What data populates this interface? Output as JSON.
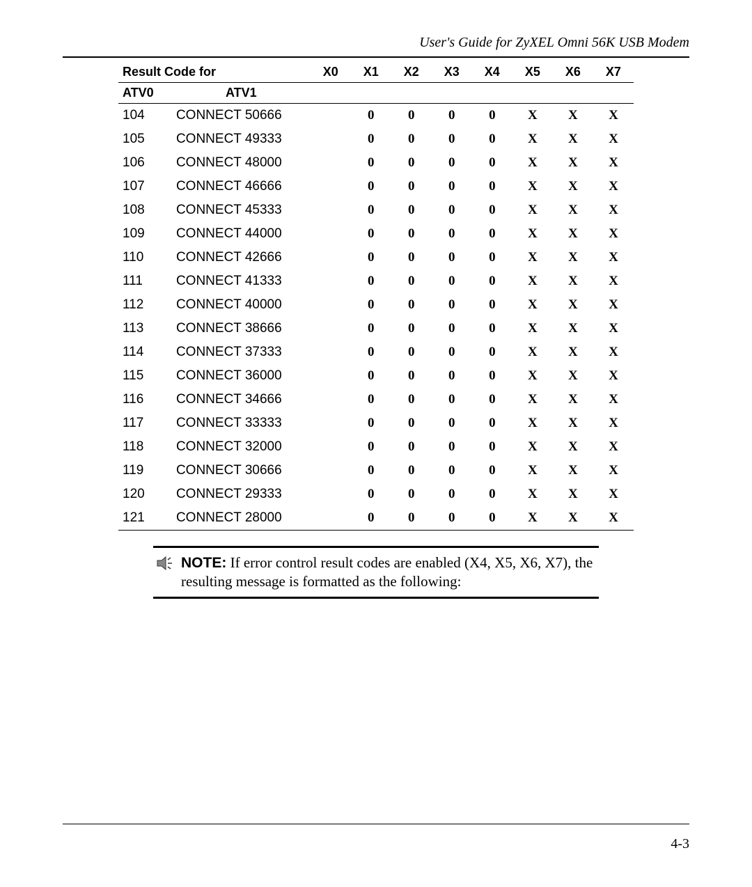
{
  "header": {
    "title": "User's Guide for ZyXEL Omni 56K USB Modem"
  },
  "table": {
    "header_label": "Result Code for",
    "sub_labels": {
      "atv0": "ATV0",
      "atv1": "ATV1"
    },
    "x_headers": [
      "X0",
      "X1",
      "X2",
      "X3",
      "X4",
      "X5",
      "X6",
      "X7"
    ],
    "rows": [
      {
        "atv0": "104",
        "atv1": "CONNECT 50666",
        "x": [
          "",
          "0",
          "0",
          "0",
          "0",
          "X",
          "X",
          "X"
        ]
      },
      {
        "atv0": "105",
        "atv1": "CONNECT 49333",
        "x": [
          "",
          "0",
          "0",
          "0",
          "0",
          "X",
          "X",
          "X"
        ]
      },
      {
        "atv0": "106",
        "atv1": "CONNECT 48000",
        "x": [
          "",
          "0",
          "0",
          "0",
          "0",
          "X",
          "X",
          "X"
        ]
      },
      {
        "atv0": "107",
        "atv1": "CONNECT 46666",
        "x": [
          "",
          "0",
          "0",
          "0",
          "0",
          "X",
          "X",
          "X"
        ]
      },
      {
        "atv0": "108",
        "atv1": "CONNECT 45333",
        "x": [
          "",
          "0",
          "0",
          "0",
          "0",
          "X",
          "X",
          "X"
        ]
      },
      {
        "atv0": "109",
        "atv1": "CONNECT 44000",
        "x": [
          "",
          "0",
          "0",
          "0",
          "0",
          "X",
          "X",
          "X"
        ]
      },
      {
        "atv0": "110",
        "atv1": "CONNECT 42666",
        "x": [
          "",
          "0",
          "0",
          "0",
          "0",
          "X",
          "X",
          "X"
        ]
      },
      {
        "atv0": "111",
        "atv1": "CONNECT 41333",
        "x": [
          "",
          "0",
          "0",
          "0",
          "0",
          "X",
          "X",
          "X"
        ]
      },
      {
        "atv0": "112",
        "atv1": "CONNECT 40000",
        "x": [
          "",
          "0",
          "0",
          "0",
          "0",
          "X",
          "X",
          "X"
        ]
      },
      {
        "atv0": "113",
        "atv1": "CONNECT 38666",
        "x": [
          "",
          "0",
          "0",
          "0",
          "0",
          "X",
          "X",
          "X"
        ]
      },
      {
        "atv0": "114",
        "atv1": "CONNECT 37333",
        "x": [
          "",
          "0",
          "0",
          "0",
          "0",
          "X",
          "X",
          "X"
        ]
      },
      {
        "atv0": "115",
        "atv1": "CONNECT 36000",
        "x": [
          "",
          "0",
          "0",
          "0",
          "0",
          "X",
          "X",
          "X"
        ]
      },
      {
        "atv0": "116",
        "atv1": "CONNECT 34666",
        "x": [
          "",
          "0",
          "0",
          "0",
          "0",
          "X",
          "X",
          "X"
        ]
      },
      {
        "atv0": "117",
        "atv1": "CONNECT 33333",
        "x": [
          "",
          "0",
          "0",
          "0",
          "0",
          "X",
          "X",
          "X"
        ]
      },
      {
        "atv0": "118",
        "atv1": "CONNECT 32000",
        "x": [
          "",
          "0",
          "0",
          "0",
          "0",
          "X",
          "X",
          "X"
        ]
      },
      {
        "atv0": "119",
        "atv1": "CONNECT 30666",
        "x": [
          "",
          "0",
          "0",
          "0",
          "0",
          "X",
          "X",
          "X"
        ]
      },
      {
        "atv0": "120",
        "atv1": "CONNECT 29333",
        "x": [
          "",
          "0",
          "0",
          "0",
          "0",
          "X",
          "X",
          "X"
        ]
      },
      {
        "atv0": "121",
        "atv1": "CONNECT 28000",
        "x": [
          "",
          "0",
          "0",
          "0",
          "0",
          "X",
          "X",
          "X"
        ]
      }
    ]
  },
  "note": {
    "label": "NOTE:",
    "text": " If error control result codes are enabled (X4, X5, X6, X7), the resulting message is formatted as the following:"
  },
  "footer": {
    "page": "4-3"
  }
}
